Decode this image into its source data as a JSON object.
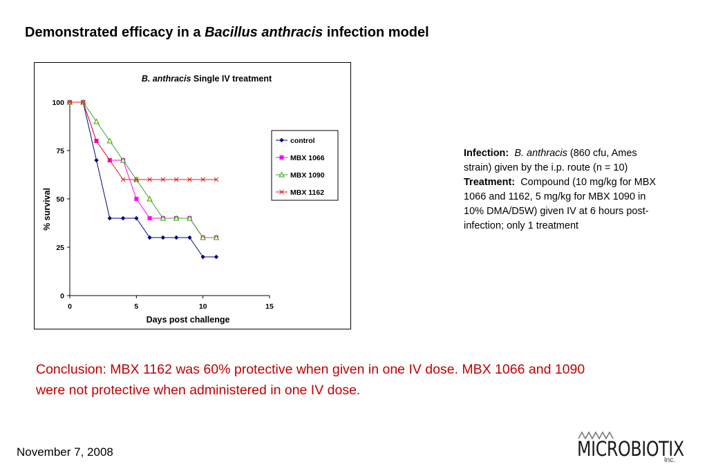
{
  "slide": {
    "title_prefix": "Demonstrated efficacy in a ",
    "title_italic": "Bacillus anthracis",
    "title_suffix": " infection model"
  },
  "info": {
    "infection_label": "Infection:",
    "infection_italic": "B. anthracis",
    "infection_text": " (860 cfu, Ames strain) given by the i.p. route (n = 10)",
    "treatment_label": "Treatment:",
    "treatment_text": "Compound (10 mg/kg for MBX 1066 and 1162, 5 mg/kg for MBX 1090 in 10% DMA/D5W) given IV at 6 hours post-infection; only 1 treatment"
  },
  "conclusion": "Conclusion:  MBX 1162 was 60% protective when given in one IV dose.  MBX 1066 and 1090 were not protective when administered in one IV dose.",
  "footer": {
    "date": "November 7, 2008"
  },
  "logo": {
    "name": "MICROBIOTIX",
    "suffix": "Inc."
  },
  "chart_data": {
    "type": "line",
    "title_italic": "B. anthracis",
    "title_rest": " Single IV treatment",
    "xlabel": "Days post challenge",
    "ylabel": "% survival",
    "xlim": [
      0,
      15
    ],
    "ylim": [
      0,
      100
    ],
    "xticks": [
      0,
      5,
      10,
      15
    ],
    "yticks": [
      0,
      25,
      50,
      75,
      100
    ],
    "grid": false,
    "legend_position": "right",
    "series": [
      {
        "name": "control",
        "color": "#000080",
        "marker": "diamond",
        "x": [
          0,
          1,
          2,
          3,
          4,
          5,
          6,
          7,
          8,
          9,
          10,
          11
        ],
        "y": [
          100,
          100,
          70,
          40,
          40,
          40,
          30,
          30,
          30,
          30,
          20,
          20
        ]
      },
      {
        "name": "MBX 1066",
        "color": "#ff00ff",
        "marker": "square",
        "x": [
          0,
          1,
          2,
          3,
          4,
          5,
          6,
          7,
          8,
          9,
          10,
          11
        ],
        "y": [
          100,
          100,
          80,
          70,
          70,
          50,
          40,
          40,
          40,
          40,
          30,
          30
        ]
      },
      {
        "name": "MBX 1090",
        "color": "#33a02c",
        "marker": "triangle",
        "x": [
          0,
          1,
          2,
          3,
          4,
          5,
          6,
          7,
          8,
          9,
          10,
          11
        ],
        "y": [
          100,
          100,
          90,
          80,
          70,
          60,
          50,
          40,
          40,
          40,
          30,
          30
        ]
      },
      {
        "name": "MBX 1162",
        "color": "#e41a1c",
        "marker": "x",
        "x": [
          0,
          1,
          2,
          3,
          4,
          5,
          6,
          7,
          8,
          9,
          10,
          11
        ],
        "y": [
          100,
          100,
          80,
          70,
          60,
          60,
          60,
          60,
          60,
          60,
          60,
          60
        ]
      }
    ]
  }
}
